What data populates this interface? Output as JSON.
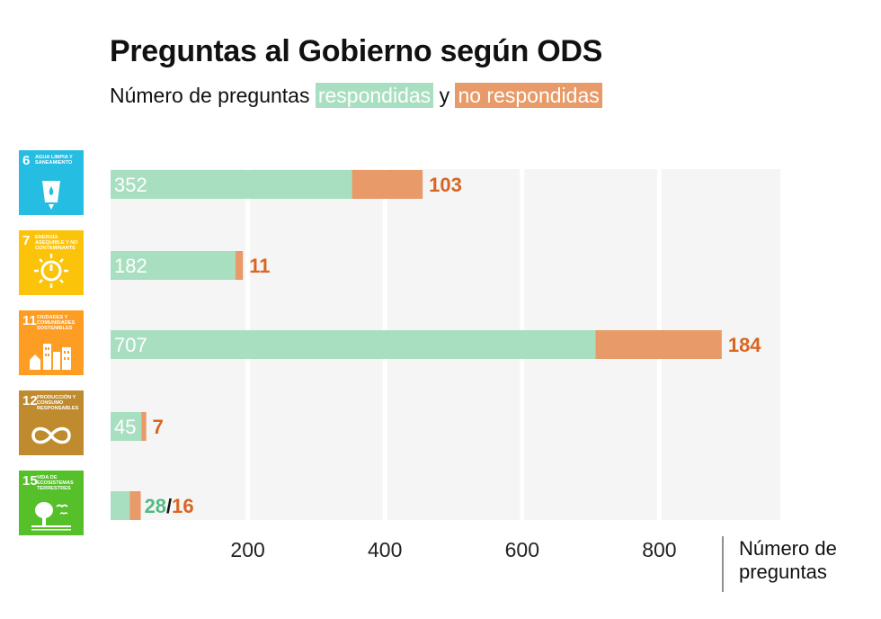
{
  "title": "Preguntas al Gobierno según ODS",
  "subtitle": {
    "prefix": "Número de preguntas",
    "answered": "respondidas",
    "connector": "y",
    "unanswered": "no respondidas"
  },
  "colors": {
    "answered": "#a8dfc0",
    "unanswered": "#e89a68",
    "unanswered_label": "#d96520",
    "answered_label": "#55b882",
    "panel": "#f5f5f5",
    "gridline": "#ffffff"
  },
  "icons": [
    {
      "number": "6",
      "text": "Agua limpia y saneamiento",
      "color": "#26bde2",
      "symbol": "water-glass-icon"
    },
    {
      "number": "7",
      "text": "Energía asequible y no contaminante",
      "color": "#fcc30b",
      "symbol": "sun-power-icon"
    },
    {
      "number": "11",
      "text": "Ciudades y comunidades sostenibles",
      "color": "#fd9d24",
      "symbol": "city-buildings-icon"
    },
    {
      "number": "12",
      "text": "Producción y consumo responsables",
      "color": "#bf8b2e",
      "symbol": "infinity-icon"
    },
    {
      "number": "15",
      "text": "Vida de ecosistemas terrestres",
      "color": "#56c02b",
      "symbol": "tree-birds-icon"
    }
  ],
  "chart_data": {
    "type": "bar",
    "orientation": "horizontal",
    "stacked": true,
    "categories": [
      "6",
      "7",
      "11",
      "12",
      "15"
    ],
    "series": [
      {
        "name": "respondidas",
        "values": [
          352,
          182,
          707,
          45,
          28
        ]
      },
      {
        "name": "no respondidas",
        "values": [
          103,
          11,
          184,
          7,
          16
        ]
      }
    ],
    "xlim": [
      0,
      980
    ],
    "xticks": [
      200,
      400,
      600,
      800
    ],
    "xtick_labels": [
      "200",
      "400",
      "600",
      "800"
    ],
    "xlabel": "Número de preguntas",
    "grid": true
  }
}
